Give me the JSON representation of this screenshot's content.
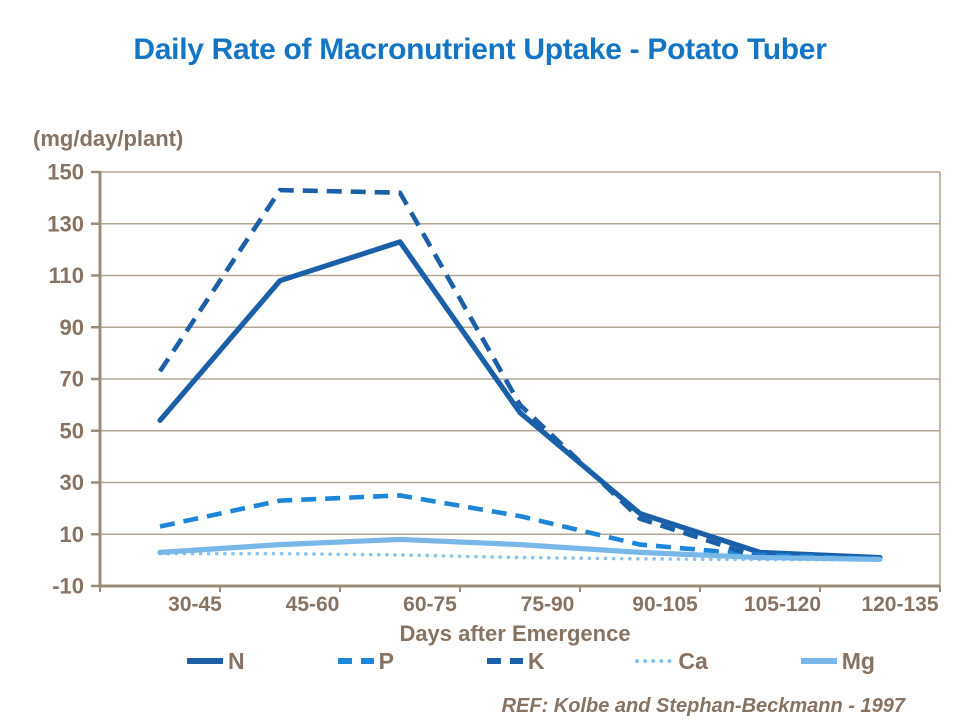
{
  "chart_data": {
    "type": "line",
    "title": "Daily Rate of Macronutrient Uptake - Potato Tuber",
    "y_unit_label": "(mg/day/plant)",
    "xlabel": "Days after Emergence",
    "reference": "REF: Kolbe and Stephan-Beckmann - 1997",
    "categories": [
      "30-45",
      "45-60",
      "60-75",
      "75-90",
      "90-105",
      "105-120",
      "120-135"
    ],
    "series": [
      {
        "name": "N",
        "style": "solid",
        "color": "#1a5fa8",
        "values": [
          54,
          108,
          123,
          57,
          18,
          3,
          1
        ]
      },
      {
        "name": "P",
        "style": "dashed",
        "color": "#1e86d6",
        "values": [
          13,
          23,
          25,
          17,
          6,
          2,
          0.5
        ]
      },
      {
        "name": "K",
        "style": "dashed",
        "color": "#1a5fa8",
        "values": [
          73,
          143,
          142,
          60,
          16,
          1,
          0.5
        ]
      },
      {
        "name": "Ca",
        "style": "dotted",
        "color": "#8cc3ef",
        "values": [
          2.5,
          2.5,
          2,
          1,
          0.5,
          0.2,
          0.1
        ]
      },
      {
        "name": "Mg",
        "style": "solid",
        "color": "#79b7e8",
        "values": [
          3,
          6,
          8,
          6,
          3,
          1,
          0.3
        ]
      }
    ],
    "ylim": [
      -10,
      150
    ],
    "y_ticks": [
      150,
      130,
      110,
      90,
      70,
      50,
      30,
      10,
      -10
    ],
    "grid": true,
    "legend_position": "bottom",
    "colors": {
      "title_text": "#1575c5",
      "axis_text": "#867363",
      "axis_line": "#998c7b",
      "gridline": "#b2a795"
    }
  }
}
